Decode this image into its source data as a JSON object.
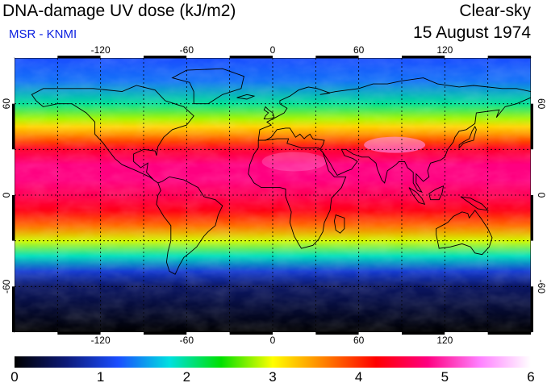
{
  "header": {
    "title": "DNA-damage UV dose (kJ/m2)",
    "credit": "MSR - KNMI",
    "condition": "Clear-sky",
    "date": "15 August 1974"
  },
  "map": {
    "lon_ticks": [
      "-120",
      "-60",
      "0",
      "60",
      "120"
    ],
    "lon_values": [
      -120,
      -60,
      0,
      60,
      120
    ],
    "lat_ticks": [
      "60",
      "0",
      "-60"
    ],
    "lat_values": [
      60,
      0,
      -60
    ],
    "grid_lon_step": 30,
    "grid_lat_step": 30,
    "lon_range": [
      -180,
      180
    ],
    "lat_range": [
      -90,
      90
    ]
  },
  "colorbar": {
    "labels": [
      "0",
      "1",
      "2",
      "3",
      "4",
      "5",
      "6"
    ],
    "min": 0,
    "max": 6,
    "stops": [
      "#000000",
      "#0d1a78",
      "#1a4dff",
      "#00e0e0",
      "#00e000",
      "#ffff00",
      "#ff8000",
      "#ff0000",
      "#ff0080",
      "#ff80ff",
      "#ffffff"
    ]
  },
  "dose_profile": {
    "lat": [
      90,
      75,
      60,
      50,
      45,
      40,
      35,
      30,
      20,
      10,
      0,
      -10,
      -20,
      -30,
      -40,
      -50,
      -60,
      -90
    ],
    "value": [
      1.2,
      1.35,
      2.0,
      2.8,
      3.2,
      3.5,
      3.9,
      4.4,
      4.8,
      4.8,
      4.6,
      4.3,
      3.7,
      2.9,
      1.9,
      1.0,
      0.5,
      0.0
    ]
  }
}
